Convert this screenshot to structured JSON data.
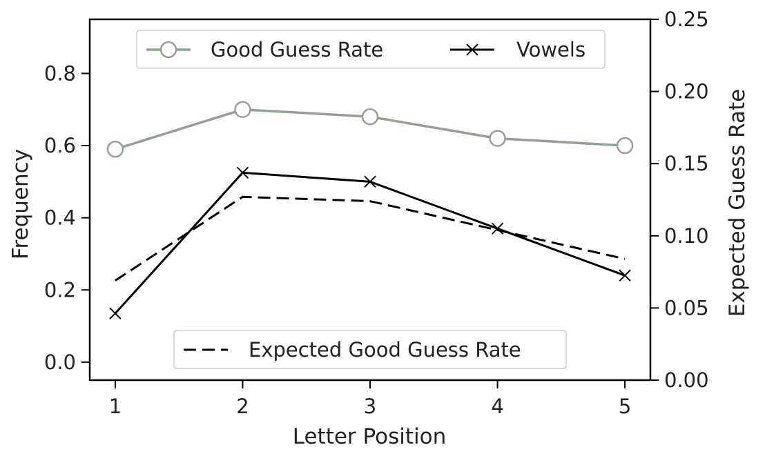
{
  "chart_data": {
    "type": "line",
    "x": [
      1,
      2,
      3,
      4,
      5
    ],
    "xlabel": "Letter Position",
    "ylabel_left": "Frequency",
    "ylabel_right": "Expected Guess Rate",
    "ylim_left": [
      -0.05,
      0.95
    ],
    "ylim_right": [
      0.0,
      0.25
    ],
    "xticks": [
      "1",
      "2",
      "3",
      "4",
      "5"
    ],
    "yticks_left": [
      "0.0",
      "0.2",
      "0.4",
      "0.6",
      "0.8"
    ],
    "yticks_right": [
      "0.00",
      "0.05",
      "0.10",
      "0.15",
      "0.20",
      "0.25"
    ],
    "grid": false,
    "series": [
      {
        "name": "Good Guess Rate",
        "axis": "left",
        "style": "solid",
        "marker": "circle",
        "color": "#93a193",
        "values": [
          0.59,
          0.7,
          0.68,
          0.62,
          0.6
        ]
      },
      {
        "name": "Vowels",
        "axis": "left",
        "style": "solid",
        "marker": "x",
        "color": "#000000",
        "values": [
          0.135,
          0.525,
          0.5,
          0.37,
          0.24
        ]
      },
      {
        "name": "Expected Good Guess Rate",
        "axis": "right",
        "style": "dashed",
        "marker": "none",
        "color": "#000000",
        "values": [
          0.069,
          0.127,
          0.124,
          0.104,
          0.084
        ]
      }
    ],
    "legends": [
      {
        "placement": "top-center",
        "entries": [
          "Good Guess Rate",
          "Vowels"
        ]
      },
      {
        "placement": "bottom-center",
        "entries": [
          "Expected Good Guess Rate"
        ]
      }
    ]
  }
}
